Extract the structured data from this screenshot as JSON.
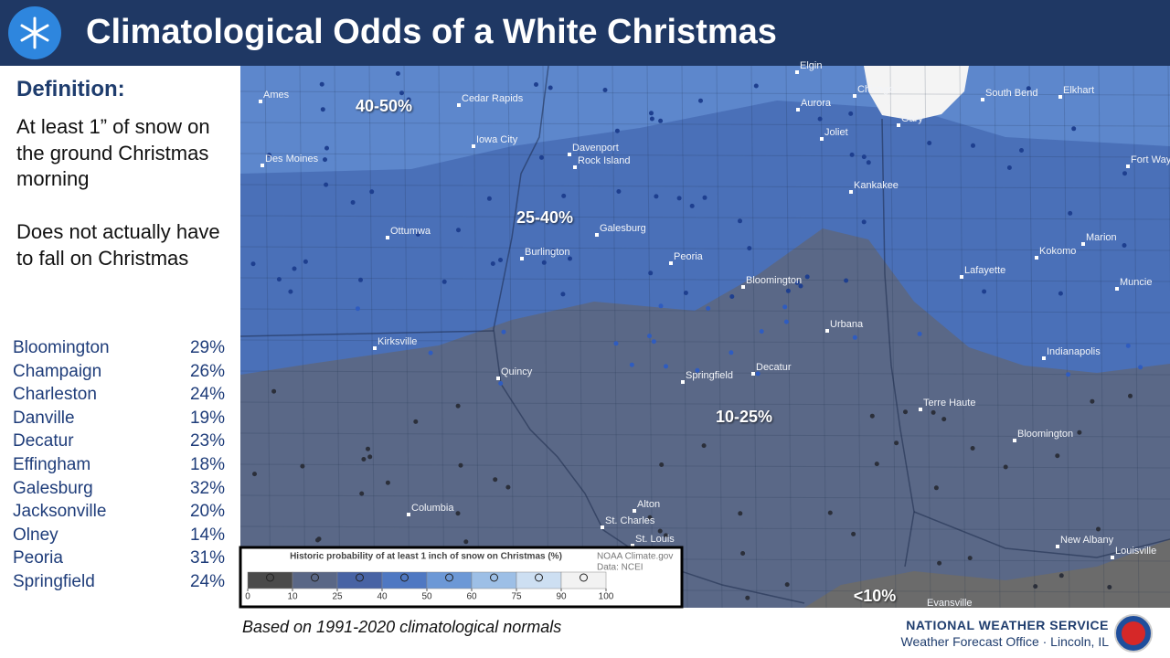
{
  "header": {
    "title": "Climatological Odds of a White Christmas"
  },
  "definition": {
    "heading": "Definition:",
    "text": [
      "At least 1” of snow on the ground Christmas morning",
      "Does not actually have to fall on Christmas"
    ]
  },
  "cities": {
    "rows": [
      [
        "Bloomington",
        "29%"
      ],
      [
        "Champaign",
        "26%"
      ],
      [
        "Charleston",
        "24%"
      ],
      [
        "Danville",
        "19%"
      ],
      [
        "Decatur",
        "23%"
      ],
      [
        "Effingham",
        "18%"
      ],
      [
        "Galesburg",
        "32%"
      ],
      [
        "Jacksonville",
        "20%"
      ],
      [
        "Olney",
        "14%"
      ],
      [
        "Peoria",
        "31%"
      ],
      [
        "Springfield",
        "24%"
      ]
    ]
  },
  "map": {
    "regions": [
      "40-50%",
      "25-40%",
      "10-25%",
      "<10%"
    ],
    "places": [
      "Ames",
      "Cedar Rapids",
      "Elgin",
      "Chicago",
      "South Bend",
      "Elkhart",
      "Aurora",
      "Gary",
      "Iowa City",
      "Davenport",
      "Rock Island",
      "Joliet",
      "Des Moines",
      "Fort Wayne",
      "Kankakee",
      "Ottumwa",
      "Galesburg",
      "Marion",
      "Burlington",
      "Peoria",
      "Kokomo",
      "Lafayette",
      "Bloomington",
      "Muncie",
      "Urbana",
      "Kirksville",
      "Indianapolis",
      "Quincy",
      "Springfield",
      "Decatur",
      "Terre Haute",
      "Bloomington",
      "Columbia",
      "Alton",
      "St. Charles",
      "St. Louis",
      "New Albany",
      "Louisville",
      "Evansville"
    ]
  },
  "legend": {
    "title": "Historic probability of at least 1 inch of snow on Christmas (%)",
    "source": "NOAA Climate.gov",
    "data": "Data: NCEI",
    "ticks": [
      0,
      10,
      25,
      40,
      50,
      60,
      75,
      90,
      100
    ],
    "colors": [
      "#4a4a4a",
      "#5a6786",
      "#4863a4",
      "#4f78c2",
      "#6c98d6",
      "#9dbfe6",
      "#cddff2",
      "#f2f2f2"
    ]
  },
  "footer": {
    "note": "Based on 1991-2020  climatological normals",
    "agency": "NATIONAL WEATHER SERVICE",
    "office": "Weather Forecast Office · Lincoln, IL"
  }
}
